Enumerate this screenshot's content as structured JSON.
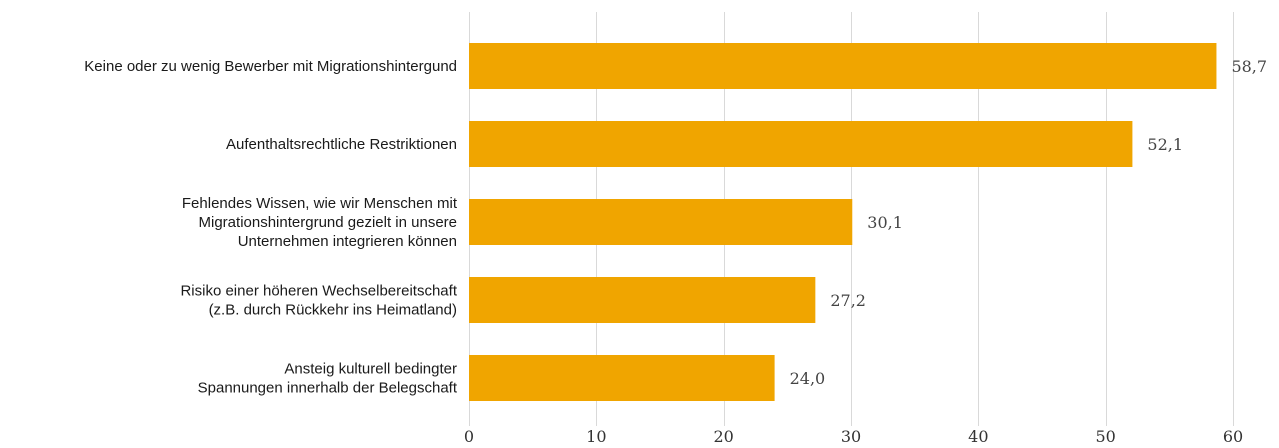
{
  "chart_data": {
    "type": "bar",
    "orientation": "horizontal",
    "categories": [
      [
        "Keine oder zu wenig Bewerber mit Migrationshintergund"
      ],
      [
        "Aufenthaltsrechtliche Restriktionen"
      ],
      [
        "Fehlendes Wissen, wie wir Menschen mit",
        "Migrationshintergrund gezielt in unsere",
        "Unternehmen integrieren können"
      ],
      [
        "Risiko einer höheren Wechselbereitschaft",
        "(z.B. durch Rückkehr ins Heimatland)"
      ],
      [
        "Ansteig kulturell bedingter",
        "Spannungen innerhalb der Belegschaft"
      ]
    ],
    "values": [
      58.7,
      52.1,
      30.1,
      27.2,
      24.0
    ],
    "value_labels": [
      "58,7",
      "52,1",
      "30,1",
      "27,2",
      "24,0"
    ],
    "xlim": [
      0,
      60
    ],
    "xticks": [
      0,
      10,
      20,
      30,
      40,
      50,
      60
    ],
    "xtick_labels": [
      "0",
      "10",
      "20",
      "30",
      "40",
      "50",
      "60"
    ],
    "grid": "vertical",
    "legend": "none",
    "title": "",
    "xlabel": "",
    "ylabel": "",
    "bar_color": "#f0a500"
  }
}
